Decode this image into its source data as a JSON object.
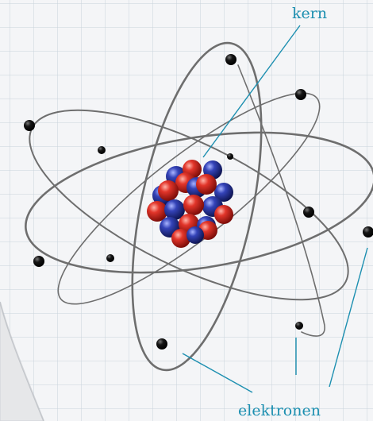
{
  "labels": {
    "nucleus": "kern",
    "electrons": "elektronen"
  },
  "colors": {
    "paper": "#f4f5f7",
    "grid": "#c9d2db",
    "orbit": "#6e6e6e",
    "electron": "#111111",
    "proton": "#d42a22",
    "neutron": "#2e3aa8",
    "leader_line": "#1c8fb0",
    "curl": "#e6e7e9"
  }
}
